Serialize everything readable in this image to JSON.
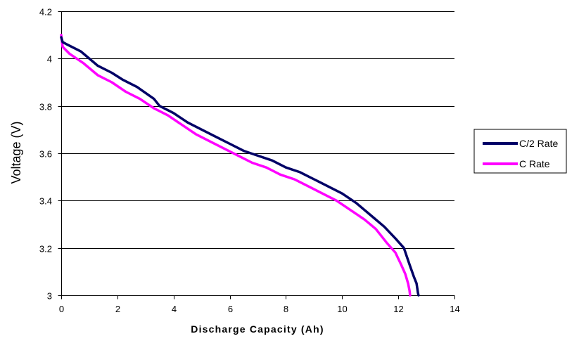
{
  "chart_data": {
    "type": "line",
    "xlabel": "Discharge Capacity (Ah)",
    "ylabel": "Voltage (V)",
    "xlim": [
      0,
      14
    ],
    "ylim": [
      3,
      4.2
    ],
    "x_ticks": [
      0,
      2,
      4,
      6,
      8,
      10,
      12,
      14
    ],
    "y_ticks": [
      3,
      3.2,
      3.4,
      3.6,
      3.8,
      4,
      4.2
    ],
    "x_tick_labels": [
      "0",
      "2",
      "4",
      "6",
      "8",
      "10",
      "12",
      "14"
    ],
    "y_tick_labels": [
      "3",
      "3.2",
      "3.4",
      "3.6",
      "3.8",
      "4",
      "4.2"
    ],
    "grid": "horizontal",
    "legend_position": "right",
    "series": [
      {
        "name": "C/2 Rate",
        "color": "#000066",
        "points": [
          [
            0,
            4.09
          ],
          [
            0.05,
            4.07
          ],
          [
            0.2,
            4.06
          ],
          [
            0.7,
            4.03
          ],
          [
            1.3,
            3.97
          ],
          [
            1.8,
            3.94
          ],
          [
            2.2,
            3.91
          ],
          [
            2.7,
            3.88
          ],
          [
            3.3,
            3.83
          ],
          [
            3.5,
            3.8
          ],
          [
            4.0,
            3.77
          ],
          [
            4.5,
            3.73
          ],
          [
            5.0,
            3.7
          ],
          [
            5.5,
            3.67
          ],
          [
            6.0,
            3.64
          ],
          [
            6.5,
            3.61
          ],
          [
            7.0,
            3.59
          ],
          [
            7.5,
            3.57
          ],
          [
            8.0,
            3.54
          ],
          [
            8.5,
            3.52
          ],
          [
            9.0,
            3.49
          ],
          [
            9.5,
            3.46
          ],
          [
            10.0,
            3.43
          ],
          [
            10.5,
            3.39
          ],
          [
            11.0,
            3.34
          ],
          [
            11.5,
            3.29
          ],
          [
            11.9,
            3.24
          ],
          [
            12.2,
            3.2
          ],
          [
            12.4,
            3.13
          ],
          [
            12.55,
            3.08
          ],
          [
            12.65,
            3.05
          ],
          [
            12.7,
            3.01
          ],
          [
            12.72,
            3.0
          ]
        ]
      },
      {
        "name": "C Rate",
        "color": "#ff00ff",
        "points": [
          [
            0,
            4.1
          ],
          [
            0.05,
            4.05
          ],
          [
            0.3,
            4.02
          ],
          [
            0.8,
            3.98
          ],
          [
            1.3,
            3.93
          ],
          [
            1.8,
            3.9
          ],
          [
            2.3,
            3.86
          ],
          [
            2.8,
            3.83
          ],
          [
            3.3,
            3.79
          ],
          [
            3.8,
            3.76
          ],
          [
            4.3,
            3.72
          ],
          [
            4.8,
            3.68
          ],
          [
            5.3,
            3.65
          ],
          [
            5.8,
            3.62
          ],
          [
            6.3,
            3.59
          ],
          [
            6.8,
            3.56
          ],
          [
            7.3,
            3.54
          ],
          [
            7.8,
            3.51
          ],
          [
            8.3,
            3.49
          ],
          [
            8.8,
            3.46
          ],
          [
            9.3,
            3.43
          ],
          [
            9.8,
            3.4
          ],
          [
            10.3,
            3.36
          ],
          [
            10.8,
            3.32
          ],
          [
            11.2,
            3.28
          ],
          [
            11.6,
            3.22
          ],
          [
            11.9,
            3.18
          ],
          [
            12.1,
            3.13
          ],
          [
            12.25,
            3.09
          ],
          [
            12.35,
            3.05
          ],
          [
            12.4,
            3.02
          ],
          [
            12.42,
            3.0
          ]
        ]
      }
    ]
  }
}
